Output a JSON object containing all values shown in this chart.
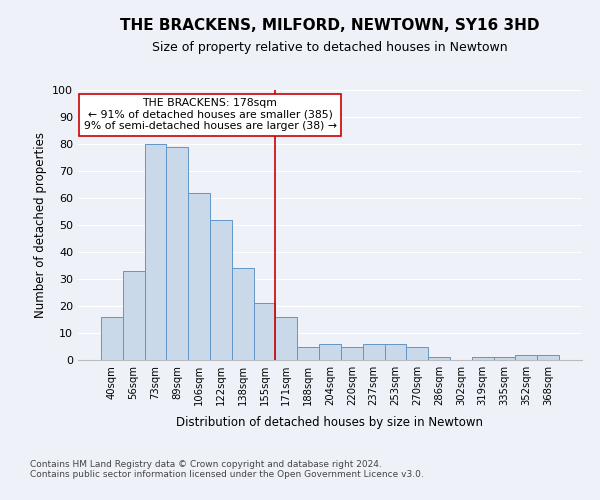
{
  "title": "THE BRACKENS, MILFORD, NEWTOWN, SY16 3HD",
  "subtitle": "Size of property relative to detached houses in Newtown",
  "xlabel": "Distribution of detached houses by size in Newtown",
  "ylabel": "Number of detached properties",
  "categories": [
    "40sqm",
    "56sqm",
    "73sqm",
    "89sqm",
    "106sqm",
    "122sqm",
    "138sqm",
    "155sqm",
    "171sqm",
    "188sqm",
    "204sqm",
    "220sqm",
    "237sqm",
    "253sqm",
    "270sqm",
    "286sqm",
    "302sqm",
    "319sqm",
    "335sqm",
    "352sqm",
    "368sqm"
  ],
  "values": [
    16,
    33,
    80,
    79,
    62,
    52,
    34,
    21,
    16,
    5,
    6,
    5,
    6,
    6,
    5,
    1,
    0,
    1,
    1,
    2,
    2
  ],
  "bar_color": "#c9d9ea",
  "bar_edge_color": "#6096c8",
  "background_color": "#eef2f8",
  "grid_color": "#ffffff",
  "vline_index": 8,
  "vline_color": "#cc0000",
  "annotation_text": "THE BRACKENS: 178sqm\n← 91% of detached houses are smaller (385)\n9% of semi-detached houses are larger (38) →",
  "annotation_box_color": "#ffffff",
  "annotation_box_edge_color": "#cc0000",
  "footnote1": "Contains HM Land Registry data © Crown copyright and database right 2024.",
  "footnote2": "Contains public sector information licensed under the Open Government Licence v3.0.",
  "ylim": [
    0,
    100
  ],
  "title_fontsize": 11,
  "subtitle_fontsize": 9,
  "ylabel_text": "Number of detached properties"
}
